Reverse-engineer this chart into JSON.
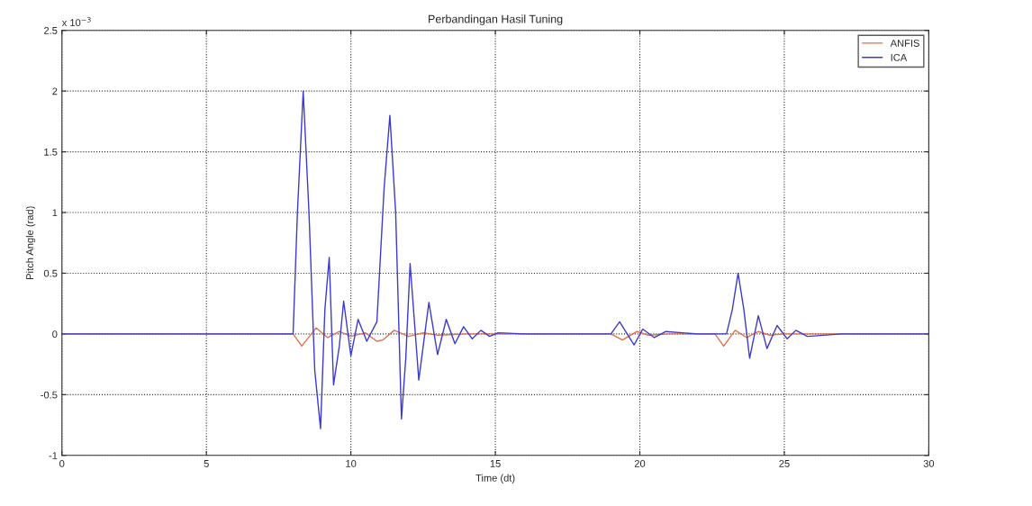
{
  "chart_data": {
    "type": "line",
    "title": "Perbandingan Hasil Tuning",
    "xlabel": "Time (dt)",
    "ylabel": "Pitch Angle (rad)",
    "annotations": [
      "x 10$^{−3}$"
    ],
    "xlim": [
      0,
      30
    ],
    "xticks": [
      0,
      5,
      10,
      15,
      20,
      25,
      30
    ],
    "ylim": [
      -1,
      2.5
    ],
    "yticks": [
      -1,
      -0.5,
      0,
      0.5,
      1,
      1.5,
      2,
      2.5
    ],
    "grid": true,
    "legend": "top right",
    "line_style": "solid",
    "marker": "none",
    "series": [
      {
        "name": "ANFIS",
        "color": "#e07050",
        "x": [
          0,
          8.0,
          8.3,
          8.8,
          9.2,
          9.6,
          10.0,
          10.5,
          10.9,
          11.1,
          11.5,
          12.0,
          12.5,
          13.0,
          14.0,
          19.0,
          19.4,
          19.9,
          20.3,
          21.0,
          22.6,
          22.9,
          23.3,
          23.7,
          24.1,
          24.5,
          25.0,
          30
        ],
        "values": [
          0,
          0,
          -0.1,
          0.05,
          -0.03,
          0.02,
          -0.02,
          0.01,
          -0.06,
          -0.05,
          0.03,
          -0.02,
          0.01,
          -0.01,
          0,
          0,
          -0.05,
          0.02,
          -0.01,
          0,
          0,
          -0.1,
          0.03,
          -0.03,
          0.02,
          -0.01,
          0,
          0
        ]
      },
      {
        "name": "ICA",
        "color": "#3a3ad0",
        "x": [
          0,
          8.0,
          8.15,
          8.35,
          8.55,
          8.75,
          8.95,
          9.1,
          9.25,
          9.4,
          9.6,
          9.75,
          9.9,
          10.0,
          10.25,
          10.55,
          10.9,
          11.15,
          11.35,
          11.55,
          11.75,
          11.9,
          12.05,
          12.2,
          12.35,
          12.7,
          13.0,
          13.3,
          13.6,
          13.9,
          14.2,
          14.5,
          14.8,
          15.1,
          16.0,
          19.0,
          19.3,
          19.8,
          20.1,
          20.5,
          20.9,
          22.0,
          23.0,
          23.2,
          23.4,
          23.6,
          23.8,
          24.1,
          24.4,
          24.75,
          25.1,
          25.4,
          25.8,
          27.0,
          30
        ],
        "values": [
          0,
          0,
          1.0,
          2.0,
          1.0,
          -0.3,
          -0.78,
          0.2,
          0.63,
          -0.42,
          -0.1,
          0.27,
          0.0,
          -0.18,
          0.12,
          -0.06,
          0.1,
          1.2,
          1.8,
          1.0,
          -0.7,
          -0.2,
          0.58,
          0.1,
          -0.38,
          0.26,
          -0.17,
          0.12,
          -0.08,
          0.06,
          -0.04,
          0.03,
          -0.02,
          0.01,
          0,
          0,
          0.1,
          -0.09,
          0.04,
          -0.03,
          0.02,
          0,
          0,
          0.2,
          0.5,
          0.2,
          -0.2,
          0.15,
          -0.12,
          0.07,
          -0.04,
          0.03,
          -0.02,
          0,
          0
        ]
      }
    ]
  }
}
